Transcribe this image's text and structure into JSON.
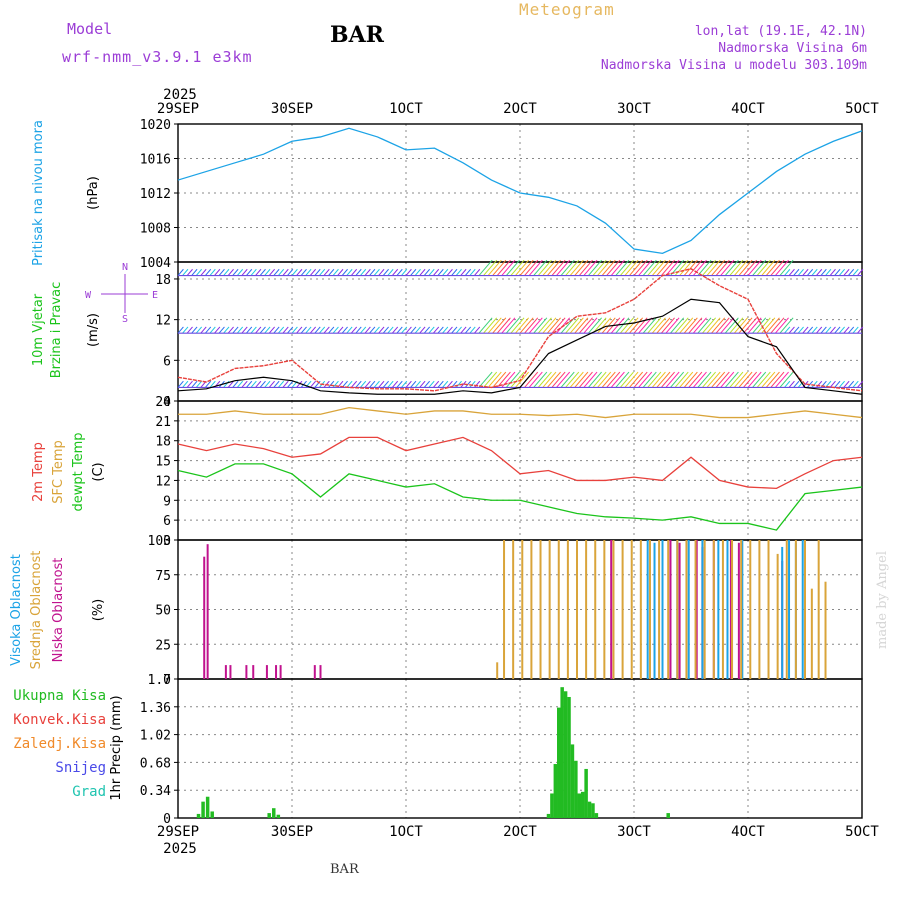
{
  "header": {
    "model_label": "Model",
    "model_name": "wrf-nmm_v3.9.1 e3km",
    "station": "BAR",
    "title": "Meteogram",
    "lonlat": "lon,lat (19.1E, 42.1N)",
    "elev": "Nadmorska Visina 6m",
    "elev_model": "Nadmorska Visina u modelu 303.109m",
    "footer": "BAR",
    "credit": "made by Angel"
  },
  "colors": {
    "pressure": "#1ca3e6",
    "wind_gust": "#e8413c",
    "wind_mean": "#000000",
    "temp2m": "#e8413c",
    "sfc": "#d9a43a",
    "dew": "#1bc41b",
    "high_cloud": "#1ca3e6",
    "mid_cloud": "#d9a43a",
    "low_cloud": "#c0128e",
    "precip": "#22bb22",
    "axis_purple": "#9b3dd6"
  },
  "time_axis": {
    "year": "2025",
    "ticks": [
      "29SEP",
      "30SEP",
      "1OCT",
      "2OCT",
      "3OCT",
      "4OCT",
      "5OCT"
    ]
  },
  "chart_data": [
    {
      "id": "pressure",
      "type": "line",
      "ylabel": "Pritisak na nivou mora",
      "unit": "(hPa)",
      "ylim": [
        1004,
        1020
      ],
      "yticks": [
        "1020",
        "1016",
        "1012",
        "1008",
        "1004"
      ],
      "grid": true,
      "x": [
        0,
        0.25,
        0.5,
        0.75,
        1,
        1.25,
        1.5,
        1.75,
        2,
        2.25,
        2.5,
        2.75,
        3,
        3.25,
        3.5,
        3.75,
        4,
        4.25,
        4.5,
        4.75,
        5,
        5.25,
        5.5,
        5.75,
        6
      ],
      "series": [
        {
          "values": [
            1013.5,
            1014.5,
            1015.5,
            1016.5,
            1018,
            1018.5,
            1019.5,
            1018.5,
            1017,
            1017.2,
            1015.5,
            1013.5,
            1012,
            1011.5,
            1010.5,
            1008.5,
            1005.5,
            1005.0,
            1006.5,
            1009.5,
            1012,
            1014.5,
            1016.5,
            1018,
            1019.2
          ]
        }
      ]
    },
    {
      "id": "wind",
      "type": "line",
      "ylabel": [
        "10m Vjetar",
        "Brzina i Pravac"
      ],
      "unit": "(m/s)",
      "ylim": [
        0,
        20.5
      ],
      "yticks": [
        "18",
        "12",
        "6",
        "0"
      ],
      "grid": true,
      "direction_legend": [
        "N",
        "W",
        "E",
        "S"
      ],
      "x": [
        0,
        0.25,
        0.5,
        0.75,
        1,
        1.25,
        1.5,
        1.75,
        2,
        2.25,
        2.5,
        2.75,
        3,
        3.25,
        3.5,
        3.75,
        4,
        4.25,
        4.5,
        4.75,
        5,
        5.25,
        5.5,
        5.75,
        6
      ],
      "series": [
        {
          "values": [
            3.5,
            2.8,
            4.8,
            5.2,
            6.0,
            2.5,
            2.0,
            1.8,
            1.8,
            1.5,
            2.5,
            2.0,
            3.0,
            9.5,
            12.5,
            13.0,
            15.0,
            18.5,
            19.5,
            17.0,
            15.0,
            7.0,
            2.5,
            2.0,
            1.5
          ]
        },
        {
          "values": [
            1.5,
            1.8,
            3.0,
            3.5,
            3.0,
            1.5,
            1.2,
            1.0,
            1.0,
            1.0,
            1.5,
            1.2,
            2.0,
            7.0,
            9.0,
            11.0,
            11.5,
            12.5,
            15.0,
            14.5,
            9.5,
            8.0,
            2.0,
            1.5,
            1.0
          ]
        }
      ]
    },
    {
      "id": "temperature",
      "type": "line",
      "ylabel": [
        "2m Temp",
        "SFC Temp",
        "dewpt Temp"
      ],
      "unit": "(C)",
      "ylim": [
        3,
        24
      ],
      "yticks": [
        "24",
        "21",
        "18",
        "15",
        "12",
        "9",
        "6",
        "3"
      ],
      "grid": true,
      "x": [
        0,
        0.25,
        0.5,
        0.75,
        1,
        1.25,
        1.5,
        1.75,
        2,
        2.25,
        2.5,
        2.75,
        3,
        3.25,
        3.5,
        3.75,
        4,
        4.25,
        4.5,
        4.75,
        5,
        5.25,
        5.5,
        5.75,
        6
      ],
      "series": [
        {
          "values": [
            17.5,
            16.5,
            17.5,
            16.8,
            15.5,
            16.0,
            18.5,
            18.5,
            16.5,
            17.5,
            18.5,
            16.5,
            13.0,
            13.5,
            12.0,
            12.0,
            12.5,
            12.0,
            15.5,
            12.0,
            11.0,
            10.8,
            13.0,
            15.0,
            15.5
          ]
        },
        {
          "values": [
            22.0,
            22.0,
            22.5,
            22.0,
            22.0,
            22.0,
            23.0,
            22.5,
            22.0,
            22.5,
            22.5,
            22.0,
            22.0,
            21.8,
            22.0,
            21.5,
            22.0,
            22.0,
            22.0,
            21.5,
            21.5,
            22.0,
            22.5,
            22.0,
            21.5
          ]
        },
        {
          "values": [
            13.5,
            12.5,
            14.5,
            14.5,
            13.0,
            9.5,
            13.0,
            12.0,
            11.0,
            11.5,
            9.5,
            9.0,
            9.0,
            8.0,
            7.0,
            6.5,
            6.3,
            6.0,
            6.5,
            5.5,
            5.5,
            4.5,
            10.0,
            10.5,
            11.0
          ]
        }
      ]
    },
    {
      "id": "cloud",
      "type": "bar",
      "ylabel": [
        "Visoka Oblacnost",
        "Srednja Oblacnost",
        "Niska Oblacnost"
      ],
      "unit": "(%)",
      "ylim": [
        0,
        100
      ],
      "yticks": [
        "100",
        "75",
        "50",
        "25",
        "0"
      ],
      "grid": true,
      "series": [
        {
          "x": [
            0.23,
            0.26,
            0.42,
            0.46,
            0.6,
            0.66,
            0.78,
            0.86,
            0.9,
            1.2,
            1.25,
            3.8,
            4.32,
            4.4,
            4.55,
            4.6,
            4.7,
            4.85,
            4.92,
            5.3
          ],
          "values": [
            88,
            97,
            10,
            10,
            10,
            10,
            10,
            10,
            10,
            10,
            10,
            100,
            100,
            98,
            100,
            95,
            100,
            100,
            98,
            85
          ]
        },
        {
          "x": [
            4.12,
            4.18,
            4.25,
            4.38,
            4.48,
            4.6,
            4.74,
            4.82,
            4.95,
            5.3,
            5.36,
            5.42,
            5.48
          ],
          "values": [
            100,
            98,
            100,
            100,
            100,
            100,
            100,
            100,
            100,
            95,
            100,
            98,
            100
          ]
        },
        {
          "x": [
            2.8,
            2.86,
            2.94,
            3.02,
            3.1,
            3.18,
            3.26,
            3.34,
            3.42,
            3.5,
            3.58,
            3.66,
            3.74,
            3.82,
            3.9,
            3.98,
            4.06,
            4.14,
            4.22,
            4.3,
            4.38,
            4.46,
            4.54,
            4.62,
            4.7,
            4.78,
            4.86,
            4.94,
            5.02,
            5.1,
            5.18,
            5.26,
            5.34,
            5.42,
            5.5,
            5.56,
            5.62,
            5.68
          ],
          "values": [
            12,
            100,
            100,
            100,
            100,
            100,
            100,
            100,
            100,
            100,
            100,
            100,
            100,
            100,
            100,
            100,
            100,
            100,
            100,
            100,
            100,
            100,
            100,
            100,
            100,
            100,
            100,
            100,
            100,
            100,
            100,
            90,
            100,
            100,
            100,
            65,
            100,
            70
          ]
        }
      ]
    },
    {
      "id": "precip",
      "type": "bar",
      "ylabel": "1hr Precip",
      "unit": "(mm)",
      "ylim": [
        0,
        1.7
      ],
      "yticks": [
        "1.7",
        "1.36",
        "1.02",
        "0.68",
        "0.34",
        "0"
      ],
      "grid": true,
      "legend": [
        "Ukupna Kisa",
        "Konvek.Kisa",
        "Zaledj.Kisa",
        "Snijeg",
        "Grad"
      ],
      "series": [
        {
          "x": [
            0.18,
            0.22,
            0.26,
            0.3,
            0.8,
            0.84,
            0.88,
            3.25,
            3.28,
            3.31,
            3.34,
            3.37,
            3.4,
            3.43,
            3.46,
            3.49,
            3.52,
            3.55,
            3.58,
            3.61,
            3.64,
            3.67,
            4.3
          ],
          "values": [
            0.05,
            0.2,
            0.26,
            0.08,
            0.06,
            0.12,
            0.04,
            0.05,
            0.3,
            0.66,
            1.35,
            1.6,
            1.55,
            1.48,
            0.9,
            0.7,
            0.3,
            0.32,
            0.6,
            0.2,
            0.18,
            0.06,
            0.06
          ]
        }
      ]
    }
  ]
}
